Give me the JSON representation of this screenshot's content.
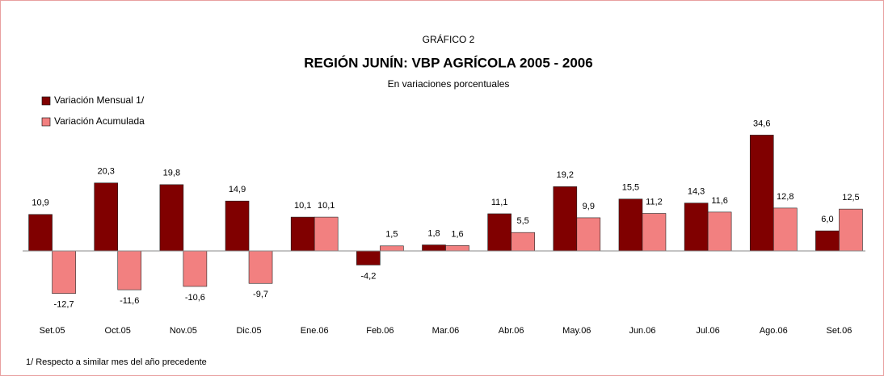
{
  "chart_data": {
    "type": "bar",
    "pretitle": "GRÁFICO 2",
    "title": "REGIÓN JUNÍN: VBP AGRÍCOLA 2005 - 2006",
    "subtitle": "En variaciones porcentuales",
    "footnote": "1/ Respecto a similar mes del año precedente",
    "legend_position": "upper left",
    "categories": [
      "Set.05",
      "Oct.05",
      "Nov.05",
      "Dic.05",
      "Ene.06",
      "Feb.06",
      "Mar.06",
      "Abr.06",
      "May.06",
      "Jun.06",
      "Jul.06",
      "Ago.06",
      "Set.06"
    ],
    "ylim": [
      -20,
      40
    ],
    "series": [
      {
        "name": "Variación Mensual 1/",
        "color": "#800000",
        "values": [
          10.9,
          20.3,
          19.8,
          14.9,
          10.1,
          -4.2,
          1.8,
          11.1,
          19.2,
          15.5,
          14.3,
          34.6,
          6.0
        ],
        "value_labels": [
          "10,9",
          "20,3",
          "19,8",
          "14,9",
          "10,1",
          "-4,2",
          "1,8",
          "11,1",
          "19,2",
          "15,5",
          "14,3",
          "34,6",
          "6,0"
        ]
      },
      {
        "name": "Variación Acumulada",
        "color": "#f28080",
        "values": [
          -12.7,
          -11.6,
          -10.6,
          -9.7,
          10.1,
          1.5,
          1.6,
          5.5,
          9.9,
          11.2,
          11.6,
          12.8,
          12.5
        ],
        "value_labels": [
          "-12,7",
          "-11,6",
          "-10,6",
          "-9,7",
          "10,1",
          "1,5",
          "1,6",
          "5,5",
          "9,9",
          "11,2",
          "11,6",
          "12,8",
          "12,5"
        ]
      }
    ]
  }
}
